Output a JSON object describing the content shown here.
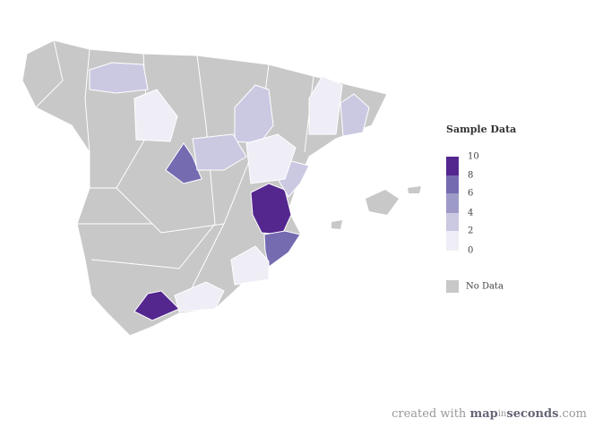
{
  "legend": {
    "title": "Sample Data",
    "ticks": [
      10,
      8,
      6,
      4,
      2,
      0
    ],
    "colors": [
      "#54278f",
      "#756bb1",
      "#9e9ac8",
      "#cbc9e2",
      "#efedf5"
    ],
    "no_data_label": "No Data",
    "no_data_color": "#c8c8c8"
  },
  "regions": [
    {
      "value": 3
    },
    {
      "value": 3
    },
    {
      "value": 7
    },
    {
      "value": 10
    },
    {
      "value": 7
    },
    {
      "value": 10
    },
    {
      "value": 3
    },
    {
      "value": 1
    },
    {
      "value": 1
    },
    {
      "value": 2
    },
    {
      "value": 3
    },
    {
      "value": 1
    },
    {
      "value": 1
    },
    {
      "value": 1
    }
  ],
  "footer": {
    "prefix": "created with",
    "brand_a": "map",
    "brand_b": "in",
    "brand_c": "seconds",
    "suffix": ".com"
  }
}
